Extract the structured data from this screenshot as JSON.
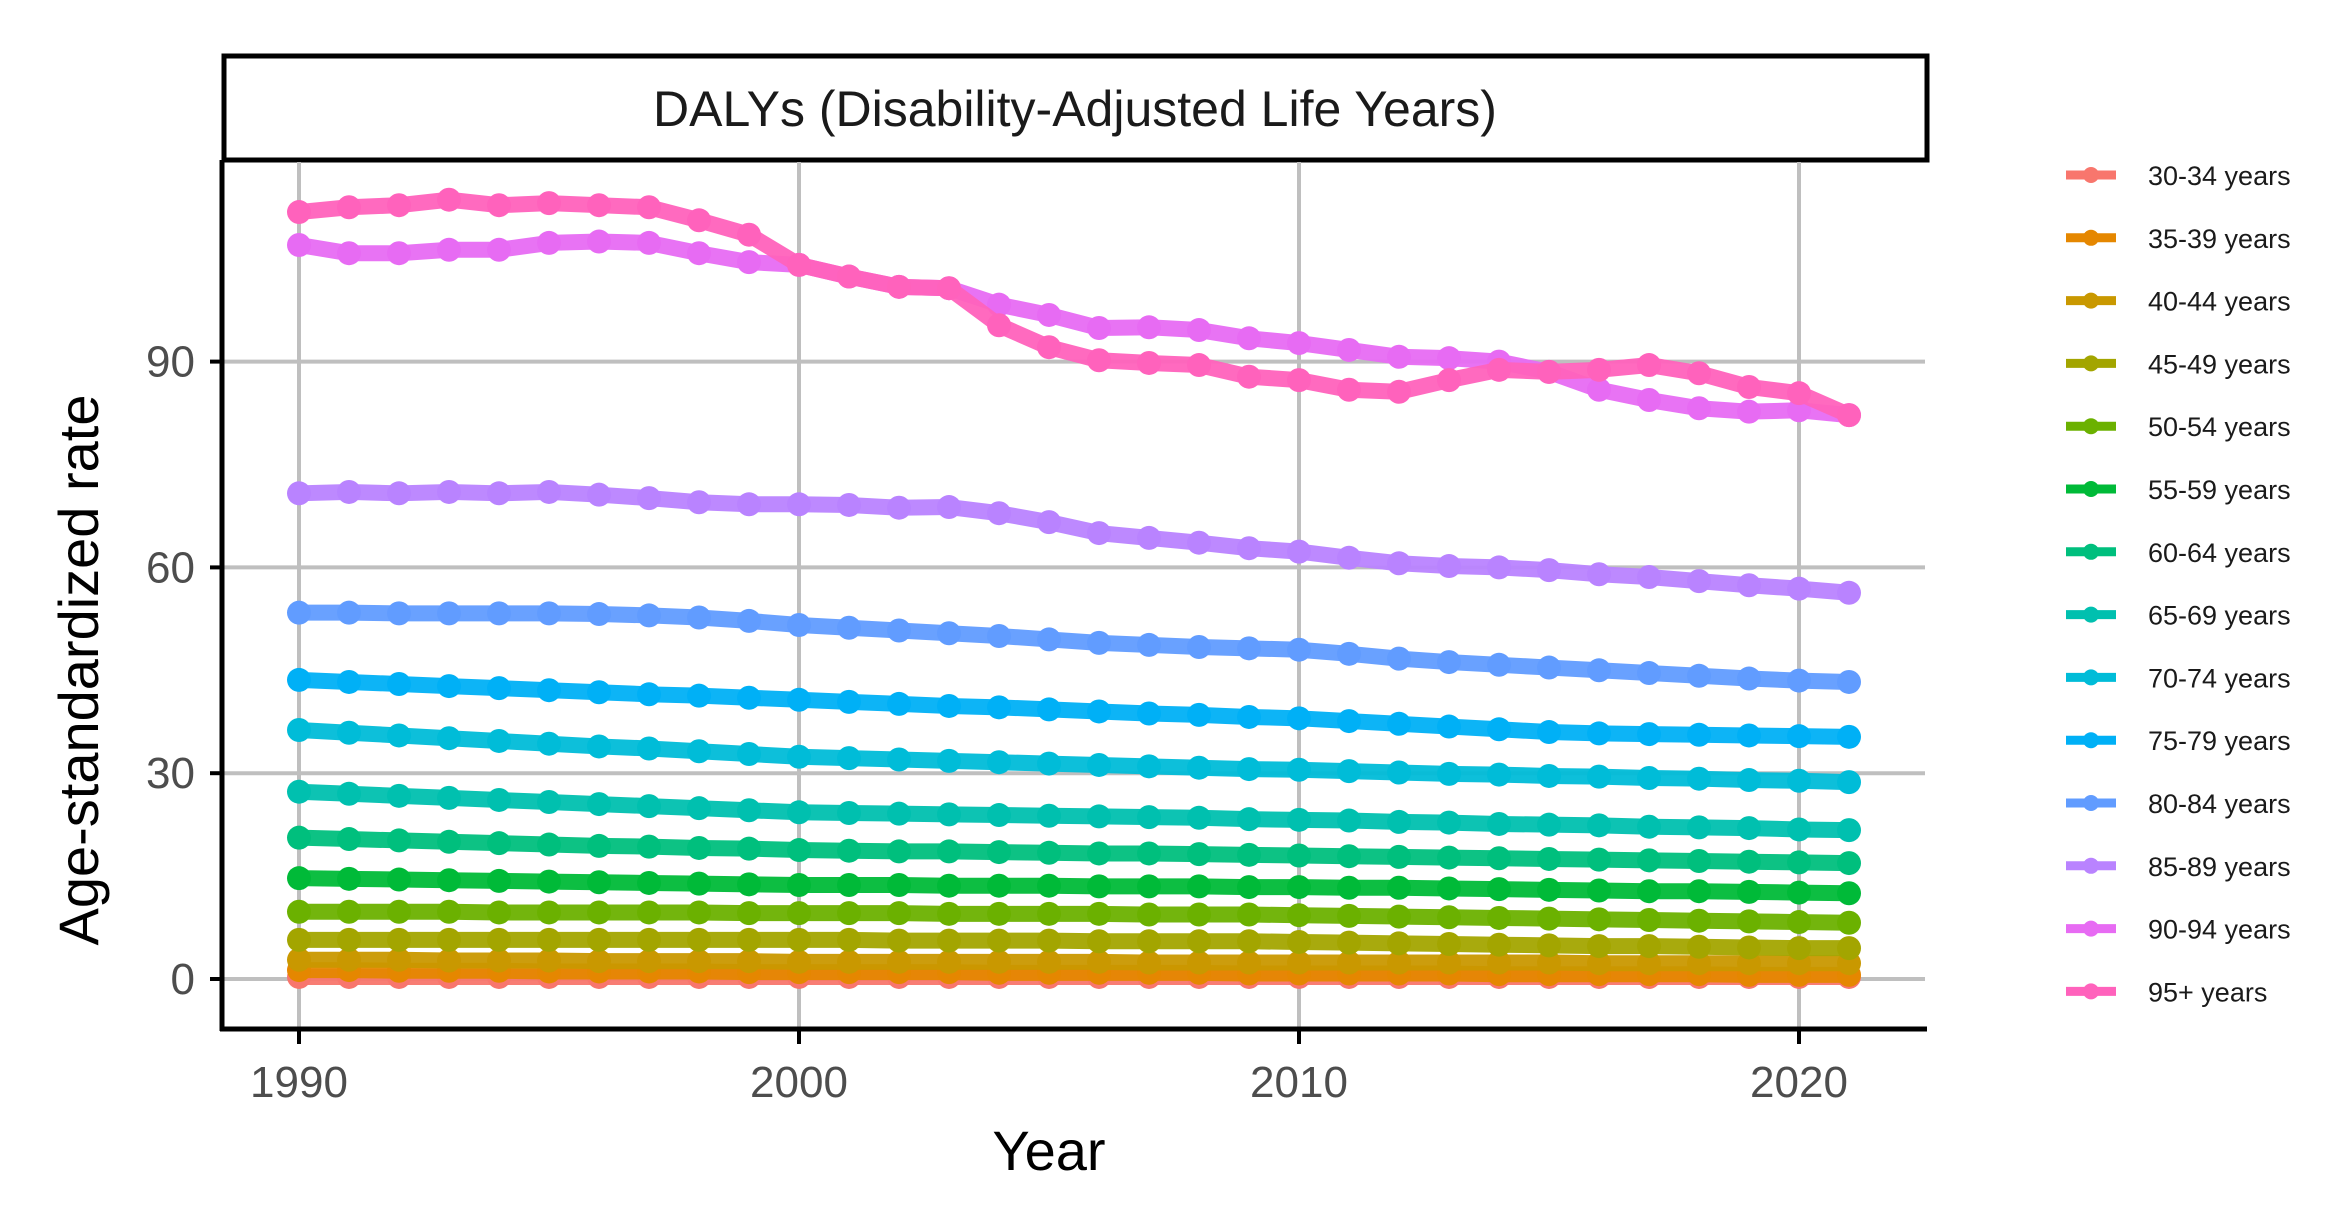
{
  "chart_data": {
    "type": "line",
    "title": "DALYs (Disability-Adjusted Life Years)",
    "xlabel": "Year",
    "ylabel": "Age-standardized rate",
    "xlim": [
      1988.5,
      2022.5
    ],
    "ylim": [
      -5,
      120
    ],
    "x_ticks": [
      1990,
      2000,
      2010,
      2020
    ],
    "x_tick_labels": [
      "1990",
      "2000",
      "2010",
      "2020"
    ],
    "y_ticks": [
      0,
      30,
      60,
      90
    ],
    "y_tick_labels": [
      "0",
      "30",
      "60",
      "90"
    ],
    "grid": true,
    "legend_position": "right",
    "x": [
      1990,
      1991,
      1992,
      1993,
      1994,
      1995,
      1996,
      1997,
      1998,
      1999,
      2000,
      2001,
      2002,
      2003,
      2004,
      2005,
      2006,
      2007,
      2008,
      2009,
      2010,
      2011,
      2012,
      2013,
      2014,
      2015,
      2016,
      2017,
      2018,
      2019,
      2020,
      2021
    ],
    "series": [
      {
        "name": "30-34 years",
        "color": "#F8766D",
        "values": [
          0.3,
          0.3,
          0.3,
          0.3,
          0.3,
          0.3,
          0.3,
          0.3,
          0.3,
          0.3,
          0.3,
          0.3,
          0.3,
          0.3,
          0.3,
          0.3,
          0.3,
          0.3,
          0.3,
          0.3,
          0.3,
          0.3,
          0.3,
          0.3,
          0.3,
          0.3,
          0.3,
          0.3,
          0.3,
          0.3,
          0.3,
          0.3
        ]
      },
      {
        "name": "35-39 years",
        "color": "#E58700",
        "values": [
          1.3,
          1.3,
          1.2,
          1.2,
          1.2,
          1.1,
          1.1,
          1.1,
          1.1,
          1.0,
          1.0,
          1.0,
          1.0,
          1.0,
          0.9,
          0.9,
          0.9,
          0.9,
          0.9,
          0.8,
          0.8,
          0.8,
          0.8,
          0.8,
          0.7,
          0.7,
          0.7,
          0.7,
          0.7,
          0.6,
          0.6,
          0.6
        ]
      },
      {
        "name": "40-44 years",
        "color": "#C99800",
        "values": [
          2.8,
          2.8,
          2.8,
          2.7,
          2.7,
          2.7,
          2.6,
          2.6,
          2.6,
          2.6,
          2.5,
          2.5,
          2.5,
          2.5,
          2.5,
          2.5,
          2.5,
          2.4,
          2.4,
          2.4,
          2.4,
          2.4,
          2.4,
          2.4,
          2.4,
          2.4,
          2.3,
          2.3,
          2.3,
          2.3,
          2.3,
          2.3
        ]
      },
      {
        "name": "45-49 years",
        "color": "#A3A500",
        "values": [
          5.7,
          5.7,
          5.7,
          5.7,
          5.7,
          5.7,
          5.7,
          5.7,
          5.7,
          5.7,
          5.7,
          5.7,
          5.6,
          5.6,
          5.6,
          5.6,
          5.5,
          5.5,
          5.5,
          5.5,
          5.4,
          5.3,
          5.2,
          5.1,
          5.0,
          4.9,
          4.8,
          4.8,
          4.7,
          4.6,
          4.5,
          4.5
        ]
      },
      {
        "name": "50-54 years",
        "color": "#6BB100",
        "values": [
          9.8,
          9.8,
          9.8,
          9.8,
          9.7,
          9.7,
          9.7,
          9.7,
          9.7,
          9.6,
          9.6,
          9.6,
          9.6,
          9.5,
          9.5,
          9.5,
          9.5,
          9.4,
          9.4,
          9.4,
          9.3,
          9.2,
          9.1,
          9.0,
          8.9,
          8.8,
          8.7,
          8.6,
          8.5,
          8.4,
          8.3,
          8.2
        ]
      },
      {
        "name": "55-59 years",
        "color": "#00BA38",
        "values": [
          14.7,
          14.6,
          14.5,
          14.4,
          14.3,
          14.2,
          14.1,
          14.0,
          13.9,
          13.8,
          13.7,
          13.7,
          13.7,
          13.6,
          13.6,
          13.6,
          13.5,
          13.5,
          13.5,
          13.4,
          13.4,
          13.3,
          13.3,
          13.2,
          13.1,
          13.0,
          12.9,
          12.8,
          12.8,
          12.7,
          12.6,
          12.5
        ]
      },
      {
        "name": "60-64 years",
        "color": "#00BF7D",
        "values": [
          20.6,
          20.4,
          20.2,
          20.0,
          19.8,
          19.6,
          19.4,
          19.3,
          19.1,
          19.0,
          18.8,
          18.7,
          18.6,
          18.6,
          18.5,
          18.4,
          18.3,
          18.3,
          18.2,
          18.1,
          18.0,
          17.9,
          17.8,
          17.7,
          17.6,
          17.5,
          17.4,
          17.3,
          17.2,
          17.1,
          17.0,
          16.9
        ]
      },
      {
        "name": "65-69 years",
        "color": "#00C0AF",
        "values": [
          27.3,
          27.0,
          26.7,
          26.4,
          26.1,
          25.8,
          25.5,
          25.2,
          24.9,
          24.6,
          24.3,
          24.2,
          24.1,
          24.0,
          23.9,
          23.8,
          23.7,
          23.6,
          23.5,
          23.3,
          23.2,
          23.1,
          22.9,
          22.8,
          22.6,
          22.5,
          22.4,
          22.2,
          22.1,
          22.0,
          21.8,
          21.7
        ]
      },
      {
        "name": "70-74 years",
        "color": "#00BCD8",
        "values": [
          36.3,
          35.9,
          35.5,
          35.1,
          34.7,
          34.3,
          33.9,
          33.6,
          33.2,
          32.8,
          32.4,
          32.2,
          32.0,
          31.8,
          31.6,
          31.4,
          31.2,
          31.0,
          30.8,
          30.6,
          30.5,
          30.3,
          30.1,
          29.9,
          29.8,
          29.6,
          29.5,
          29.3,
          29.2,
          29.0,
          28.9,
          28.7
        ]
      },
      {
        "name": "75-79 years",
        "color": "#00B0F6",
        "values": [
          43.6,
          43.3,
          43.0,
          42.7,
          42.4,
          42.1,
          41.8,
          41.5,
          41.3,
          41.0,
          40.7,
          40.4,
          40.1,
          39.8,
          39.6,
          39.3,
          39.0,
          38.7,
          38.5,
          38.2,
          38.0,
          37.6,
          37.2,
          36.8,
          36.4,
          36.0,
          35.8,
          35.7,
          35.6,
          35.5,
          35.4,
          35.3
        ]
      },
      {
        "name": "80-84 years",
        "color": "#619CFF",
        "values": [
          53.4,
          53.4,
          53.3,
          53.3,
          53.3,
          53.3,
          53.2,
          53.0,
          52.7,
          52.2,
          51.6,
          51.2,
          50.8,
          50.4,
          50.0,
          49.5,
          49.0,
          48.7,
          48.4,
          48.2,
          48.0,
          47.4,
          46.7,
          46.2,
          45.8,
          45.4,
          45.0,
          44.6,
          44.2,
          43.8,
          43.5,
          43.3
        ]
      },
      {
        "name": "85-89 years",
        "color": "#B983FF",
        "values": [
          70.8,
          71.0,
          70.8,
          71.0,
          70.8,
          71.0,
          70.6,
          70.1,
          69.5,
          69.2,
          69.2,
          69.1,
          68.7,
          68.8,
          67.9,
          66.6,
          65.0,
          64.3,
          63.6,
          62.8,
          62.3,
          61.4,
          60.6,
          60.2,
          60.0,
          59.6,
          59.0,
          58.6,
          58.0,
          57.4,
          56.9,
          56.3
        ]
      },
      {
        "name": "90-94 years",
        "color": "#E76BF3",
        "values": [
          107.0,
          105.8,
          105.8,
          106.3,
          106.3,
          107.3,
          107.5,
          107.3,
          105.8,
          104.5,
          104.1,
          102.4,
          100.9,
          100.7,
          98.3,
          96.8,
          94.9,
          95.0,
          94.6,
          93.4,
          92.7,
          91.7,
          90.7,
          90.5,
          90.0,
          88.5,
          85.9,
          84.4,
          83.2,
          82.7,
          82.9,
          82.2
        ]
      },
      {
        "name": "95+ years",
        "color": "#FF62BC",
        "values": [
          111.8,
          112.5,
          112.8,
          113.6,
          112.8,
          113.1,
          112.8,
          112.5,
          110.6,
          108.5,
          104.1,
          102.4,
          100.9,
          100.7,
          95.3,
          92.1,
          90.2,
          89.8,
          89.5,
          87.8,
          87.3,
          85.9,
          85.6,
          87.3,
          88.8,
          88.5,
          88.8,
          89.5,
          88.3,
          86.3,
          85.4,
          82.2
        ]
      }
    ]
  },
  "legend": {
    "items": [
      {
        "label": "30-34 years",
        "color": "#F8766D"
      },
      {
        "label": "35-39 years",
        "color": "#E58700"
      },
      {
        "label": "40-44 years",
        "color": "#C99800"
      },
      {
        "label": "45-49 years",
        "color": "#A3A500"
      },
      {
        "label": "50-54 years",
        "color": "#6BB100"
      },
      {
        "label": "55-59 years",
        "color": "#00BA38"
      },
      {
        "label": "60-64 years",
        "color": "#00BF7D"
      },
      {
        "label": "65-69 years",
        "color": "#00C0AF"
      },
      {
        "label": "70-74 years",
        "color": "#00BCD8"
      },
      {
        "label": "75-79 years",
        "color": "#00B0F6"
      },
      {
        "label": "80-84 years",
        "color": "#619CFF"
      },
      {
        "label": "85-89 years",
        "color": "#B983FF"
      },
      {
        "label": "90-94 years",
        "color": "#E76BF3"
      },
      {
        "label": "95+ years",
        "color": "#FF62BC"
      }
    ]
  },
  "colors": {
    "gridline": "#bfbfbf",
    "axis": "#000000",
    "background": "#ffffff"
  }
}
